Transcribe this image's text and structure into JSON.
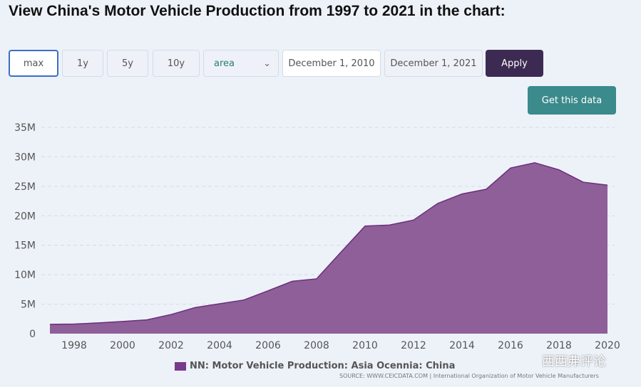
{
  "title": "View China's Motor Vehicle Production from 1997 to 2021 in the chart:",
  "controls": {
    "max": "max",
    "1y": "1y",
    "5y": "5y",
    "10y": "10y",
    "type": "area",
    "start": "December 1, 2010",
    "end": "December 1, 2021",
    "apply": "Apply",
    "get_data": "Get this data"
  },
  "colors": {
    "series": "#8e5f99",
    "line": "#6b2f7a",
    "apply": "#3d2a52",
    "get_data": "#3b8a8c"
  },
  "watermark": "西西弗评论",
  "chart_data": {
    "type": "area",
    "x": [
      1997,
      1998,
      1999,
      2000,
      2001,
      2002,
      2003,
      2004,
      2005,
      2006,
      2007,
      2008,
      2009,
      2010,
      2011,
      2012,
      2013,
      2014,
      2015,
      2016,
      2017,
      2018,
      2019,
      2020
    ],
    "series": [
      {
        "name": "NN: Motor Vehicle Production: Asia Ocennia: China",
        "values": [
          1.58,
          1.63,
          1.83,
          2.07,
          2.34,
          3.25,
          4.44,
          5.07,
          5.71,
          7.28,
          8.88,
          9.3,
          13.8,
          18.26,
          18.42,
          19.27,
          22.1,
          23.7,
          24.5,
          28.1,
          29.0,
          27.8,
          25.7,
          25.2
        ]
      }
    ],
    "ylim": [
      0,
      35
    ],
    "yticks": [
      "0",
      "5M",
      "10M",
      "15M",
      "20M",
      "25M",
      "30M",
      "35M"
    ],
    "xticks": [
      "1998",
      "2000",
      "2002",
      "2004",
      "2006",
      "2008",
      "2010",
      "2012",
      "2014",
      "2016",
      "2018",
      "2020"
    ],
    "grid": true,
    "legend": "bottom",
    "source": "SOURCE: WWW.CEICDATA.COM | International Organization of Motor Vehicle Manufacturers"
  }
}
